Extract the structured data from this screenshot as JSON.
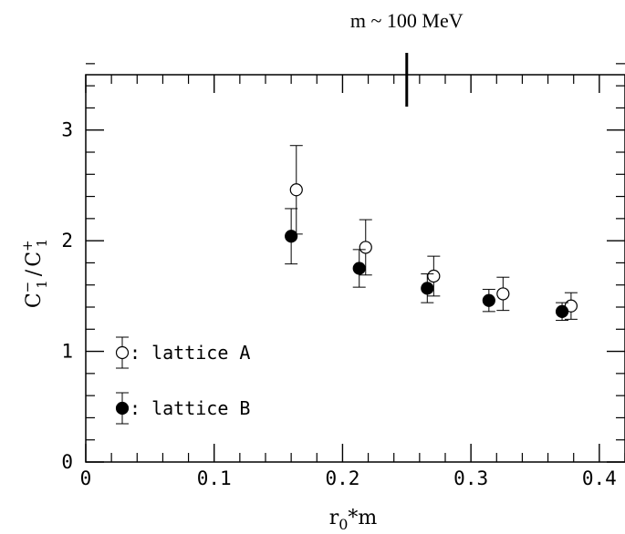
{
  "chart_data": {
    "type": "scatter",
    "xlabel_main": "r",
    "xlabel_sub": "0",
    "xlabel_rest": "*m",
    "ylabel_c1": "C",
    "ylabel_sub1": "1",
    "ylabel_sup1": "−",
    "ylabel_sep": "/",
    "ylabel_c2": "C",
    "ylabel_sub2": "1",
    "ylabel_sup2": "+",
    "xlim": [
      0,
      0.42
    ],
    "ylim": [
      0,
      3.5
    ],
    "x_ticks": [
      {
        "value": 0,
        "label": "0"
      },
      {
        "value": 0.1,
        "label": "0.1"
      },
      {
        "value": 0.2,
        "label": "0.2"
      },
      {
        "value": 0.3,
        "label": "0.3"
      },
      {
        "value": 0.4,
        "label": "0.4"
      }
    ],
    "y_ticks": [
      {
        "value": 0,
        "label": "0"
      },
      {
        "value": 1,
        "label": "1"
      },
      {
        "value": 2,
        "label": "2"
      },
      {
        "value": 3,
        "label": "3"
      }
    ],
    "annotation": {
      "label": "m ~ 100 MeV",
      "x": 0.25
    },
    "legend_placement": "bottom-left",
    "series": [
      {
        "name": ": lattice A",
        "marker": "open-circle",
        "points": [
          {
            "x": 0.164,
            "y": 2.46,
            "err": 0.4
          },
          {
            "x": 0.218,
            "y": 1.94,
            "err": 0.25
          },
          {
            "x": 0.271,
            "y": 1.68,
            "err": 0.18
          },
          {
            "x": 0.325,
            "y": 1.52,
            "err": 0.15
          },
          {
            "x": 0.378,
            "y": 1.41,
            "err": 0.12
          }
        ]
      },
      {
        "name": ": lattice B",
        "marker": "filled-circle",
        "points": [
          {
            "x": 0.16,
            "y": 2.04,
            "err": 0.25
          },
          {
            "x": 0.213,
            "y": 1.75,
            "err": 0.17
          },
          {
            "x": 0.266,
            "y": 1.57,
            "err": 0.13
          },
          {
            "x": 0.314,
            "y": 1.46,
            "err": 0.1
          },
          {
            "x": 0.371,
            "y": 1.36,
            "err": 0.08
          }
        ]
      }
    ]
  }
}
